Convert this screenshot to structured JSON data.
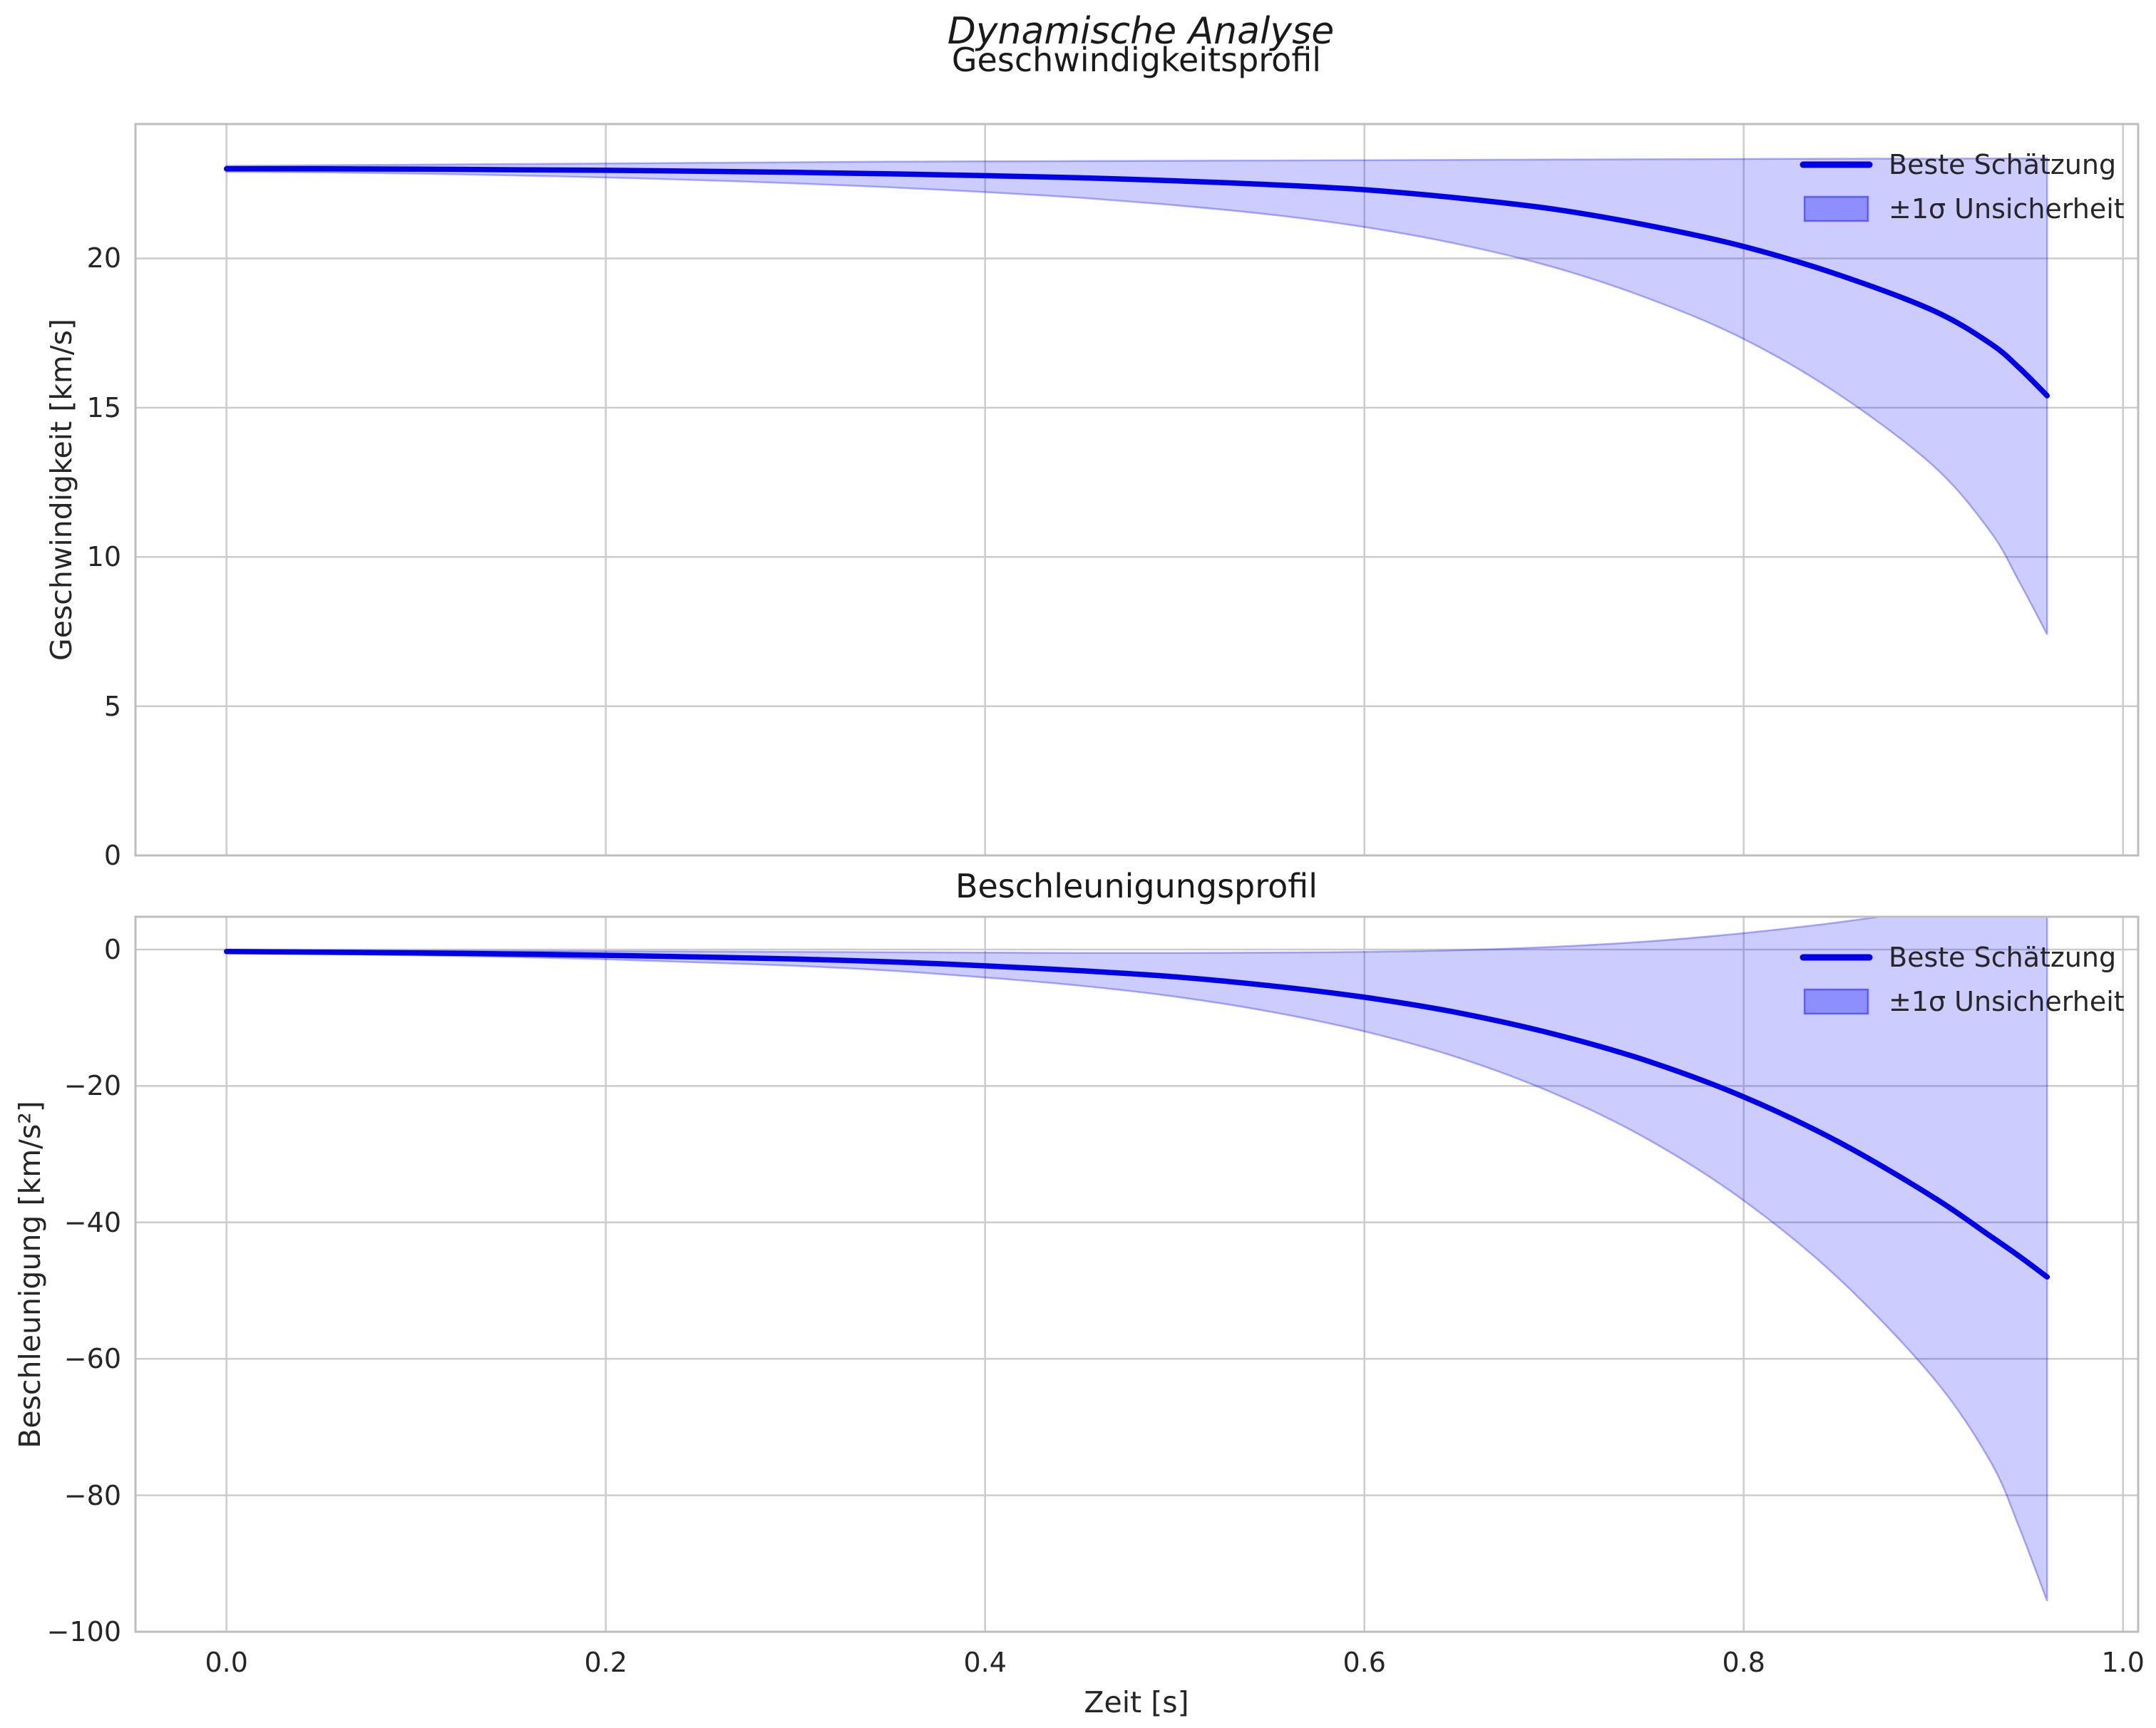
{
  "suptitle": "Dynamische Analyse",
  "xlabel": "Zeit [s]",
  "colors": {
    "line": "#0000E8",
    "band": "#0000FF",
    "grid": "#CCCCCC",
    "spine": "#BEBEBE",
    "text": "#262626"
  },
  "chart_data": [
    {
      "type": "line",
      "title": "Geschwindigkeitsprofil",
      "ylabel": "Geschwindigkeit [km/s]",
      "xlim": [
        -0.048,
        1.008
      ],
      "ylim": [
        0,
        24.5
      ],
      "grid": true,
      "legend_position": "upper right",
      "show_x_tick_labels": false,
      "xticks": {
        "values": [
          0,
          0.2,
          0.4,
          0.6,
          0.8,
          1.0
        ],
        "labels": [
          "0.0",
          "0.2",
          "0.4",
          "0.6",
          "0.8",
          "1.0"
        ]
      },
      "yticks": {
        "values": [
          0,
          5,
          10,
          15,
          20
        ],
        "labels": [
          "0",
          "5",
          "10",
          "15",
          "20"
        ]
      },
      "x": [
        0,
        0.05,
        0.1,
        0.15,
        0.2,
        0.25,
        0.3,
        0.35,
        0.4,
        0.45,
        0.5,
        0.55,
        0.6,
        0.65,
        0.7,
        0.75,
        0.8,
        0.85,
        0.9,
        0.93,
        0.945,
        0.96
      ],
      "series": [
        {
          "name": "Beste Schätzung",
          "color": "#0000E8",
          "values": [
            23.0,
            23.0,
            22.99,
            22.97,
            22.95,
            22.92,
            22.88,
            22.83,
            22.77,
            22.7,
            22.6,
            22.47,
            22.3,
            22.02,
            21.65,
            21.1,
            20.4,
            19.45,
            18.25,
            17.15,
            16.35,
            15.4
          ]
        }
      ],
      "band": {
        "name": "±1σ Unsicherheit",
        "color": "#0000FF",
        "alpha": 0.2,
        "lower": [
          22.9,
          22.88,
          22.84,
          22.78,
          22.71,
          22.62,
          22.51,
          22.38,
          22.22,
          22.03,
          21.78,
          21.47,
          21.05,
          20.47,
          19.7,
          18.65,
          17.3,
          15.45,
          13.05,
          10.85,
          9.2,
          7.4
        ],
        "upper": [
          23.1,
          23.12,
          23.14,
          23.16,
          23.18,
          23.2,
          23.22,
          23.24,
          23.25,
          23.26,
          23.27,
          23.28,
          23.29,
          23.3,
          23.31,
          23.32,
          23.33,
          23.34,
          23.34,
          23.35,
          23.35,
          23.35
        ]
      }
    },
    {
      "type": "line",
      "title": "Beschleunigungsprofil",
      "ylabel": "Beschleunigung [km/s²]",
      "xlim": [
        -0.048,
        1.008
      ],
      "ylim": [
        -100,
        4.8
      ],
      "grid": true,
      "legend_position": "upper right",
      "show_x_tick_labels": true,
      "xticks": {
        "values": [
          0,
          0.2,
          0.4,
          0.6,
          0.8,
          1.0
        ],
        "labels": [
          "0.0",
          "0.2",
          "0.4",
          "0.6",
          "0.8",
          "1.0"
        ]
      },
      "yticks": {
        "values": [
          0,
          -20,
          -40,
          -60,
          -80,
          -100
        ],
        "labels": [
          "0",
          "−20",
          "−40",
          "−60",
          "−80",
          "−100"
        ]
      },
      "x": [
        0,
        0.05,
        0.1,
        0.15,
        0.2,
        0.25,
        0.3,
        0.35,
        0.4,
        0.45,
        0.5,
        0.55,
        0.6,
        0.65,
        0.7,
        0.75,
        0.8,
        0.85,
        0.9,
        0.93,
        0.945,
        0.96
      ],
      "series": [
        {
          "name": "Beste Schätzung",
          "color": "#0000E8",
          "values": [
            -0.3,
            -0.4,
            -0.5,
            -0.65,
            -0.85,
            -1.1,
            -1.4,
            -1.8,
            -2.4,
            -3.1,
            -4.0,
            -5.3,
            -7.0,
            -9.3,
            -12.4,
            -16.4,
            -21.6,
            -28.2,
            -36.3,
            -42.0,
            -44.9,
            -48.0
          ]
        }
      ],
      "band": {
        "name": "±1σ Unsicherheit",
        "color": "#0000FF",
        "alpha": 0.2,
        "lower": [
          -0.5,
          -0.65,
          -0.85,
          -1.1,
          -1.45,
          -1.9,
          -2.4,
          -3.1,
          -4.1,
          -5.3,
          -6.9,
          -9.1,
          -12.0,
          -15.9,
          -21.1,
          -27.9,
          -36.8,
          -48.2,
          -62.8,
          -75.0,
          -84.5,
          -95.5
        ],
        "upper": [
          -0.1,
          -0.1,
          -0.15,
          -0.2,
          -0.25,
          -0.3,
          -0.35,
          -0.4,
          -0.45,
          -0.5,
          -0.5,
          -0.45,
          -0.35,
          -0.1,
          0.4,
          1.2,
          2.4,
          4.0,
          6.0,
          8.0,
          9.0,
          10.0
        ]
      }
    }
  ]
}
